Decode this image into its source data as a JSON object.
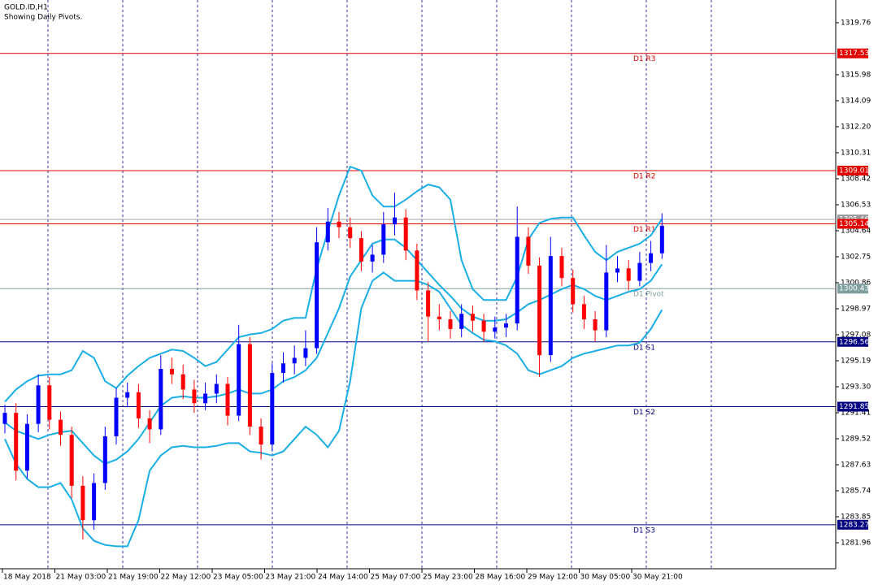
{
  "chart_data": {
    "type": "candlestick",
    "title": "GOLD.ID,H1",
    "subtitle": "Showing Daily Pivots.",
    "x_labels": [
      "18 May 2018",
      "21 May 03:00",
      "21 May 19:00",
      "22 May 12:00",
      "23 May 05:00",
      "23 May 21:00",
      "24 May 14:00",
      "25 May 07:00",
      "25 May 23:00",
      "28 May 16:00",
      "29 May 12:00",
      "30 May 05:00",
      "30 May 21:00"
    ],
    "up_color": "#0000ff",
    "down_color": "#ff0000",
    "open": [
      1290.6,
      1291.4,
      1287.2,
      1290.6,
      1293.4,
      1290.9,
      1289.8,
      1286.1,
      1283.6,
      1286.3,
      1289.7,
      1292.5,
      1292.9,
      1291.0,
      1290.2,
      1294.6,
      1294.2,
      1293.1,
      1292.1,
      1292.8,
      1293.5,
      1291.2,
      1296.4,
      1290.4,
      1289.1,
      1294.3,
      1295.0,
      1295.4,
      1296.1,
      1303.8,
      1305.3,
      1304.9,
      1304.1,
      1302.4,
      1302.9,
      1305.1,
      1305.6,
      1303.2,
      1300.3,
      1298.4,
      1298.2,
      1297.5,
      1298.6,
      1298.1,
      1297.3,
      1297.6,
      1297.9,
      1304.2,
      1302.1,
      1295.6,
      1302.8,
      1301.2,
      1299.3,
      1298.2,
      1297.4,
      1301.6,
      1301.9,
      1301.0,
      1302.3,
      1303.0
    ],
    "high": [
      1292.0,
      1292.1,
      1291.3,
      1294.2,
      1294.0,
      1291.5,
      1290.4,
      1286.8,
      1287.0,
      1290.4,
      1293.2,
      1293.6,
      1293.5,
      1291.6,
      1295.6,
      1295.4,
      1294.9,
      1293.8,
      1293.6,
      1294.2,
      1294.0,
      1297.8,
      1296.9,
      1291.0,
      1295.0,
      1295.8,
      1296.3,
      1297.4,
      1304.9,
      1306.3,
      1306.0,
      1305.6,
      1304.6,
      1303.6,
      1306.0,
      1307.4,
      1306.2,
      1303.7,
      1300.9,
      1299.3,
      1298.8,
      1299.3,
      1299.2,
      1298.6,
      1298.4,
      1298.6,
      1306.4,
      1304.9,
      1302.7,
      1304.2,
      1303.4,
      1301.8,
      1299.9,
      1298.8,
      1303.6,
      1302.8,
      1302.5,
      1303.1,
      1303.9,
      1305.9
    ],
    "low": [
      1289.9,
      1286.5,
      1286.6,
      1290.0,
      1290.2,
      1289.0,
      1285.2,
      1282.2,
      1282.9,
      1285.8,
      1289.1,
      1291.8,
      1290.3,
      1289.2,
      1289.8,
      1293.5,
      1292.4,
      1291.4,
      1291.6,
      1292.1,
      1290.5,
      1290.8,
      1289.8,
      1288.0,
      1288.6,
      1293.6,
      1294.2,
      1294.8,
      1295.7,
      1303.2,
      1304.1,
      1303.4,
      1301.7,
      1301.6,
      1302.3,
      1304.3,
      1302.5,
      1299.6,
      1296.6,
      1297.4,
      1296.8,
      1296.9,
      1297.3,
      1296.6,
      1296.8,
      1296.9,
      1297.4,
      1301.5,
      1294.0,
      1295.1,
      1300.6,
      1298.7,
      1297.5,
      1296.6,
      1296.9,
      1300.9,
      1300.3,
      1300.6,
      1301.7,
      1302.6
    ],
    "close": [
      1291.4,
      1287.2,
      1290.6,
      1293.4,
      1290.9,
      1289.8,
      1286.1,
      1283.6,
      1286.3,
      1289.7,
      1292.5,
      1292.9,
      1291.0,
      1290.2,
      1294.6,
      1294.2,
      1293.1,
      1292.1,
      1292.8,
      1293.5,
      1291.2,
      1296.4,
      1290.4,
      1289.1,
      1294.3,
      1295.0,
      1295.4,
      1296.1,
      1303.8,
      1305.3,
      1304.9,
      1304.1,
      1302.4,
      1302.9,
      1305.1,
      1305.6,
      1303.2,
      1300.3,
      1298.4,
      1298.2,
      1297.5,
      1298.6,
      1298.1,
      1297.3,
      1297.6,
      1297.9,
      1304.2,
      1302.1,
      1295.6,
      1302.8,
      1301.2,
      1299.3,
      1298.2,
      1297.4,
      1301.6,
      1301.9,
      1301.0,
      1302.3,
      1303.0,
      1305.0
    ],
    "bands": {
      "color": "#1aaee6",
      "upper": [
        1292.2,
        1293.1,
        1293.7,
        1294.1,
        1294.2,
        1294.2,
        1294.5,
        1295.9,
        1295.4,
        1293.7,
        1293.2,
        1294.1,
        1294.8,
        1295.4,
        1295.7,
        1296.0,
        1295.9,
        1295.4,
        1294.8,
        1295.1,
        1296.0,
        1296.9,
        1297.1,
        1297.2,
        1297.5,
        1298.1,
        1298.3,
        1298.3,
        1301.9,
        1304.6,
        1307.2,
        1309.3,
        1309.0,
        1307.2,
        1306.4,
        1306.4,
        1306.9,
        1307.5,
        1308.0,
        1307.8,
        1306.9,
        1302.5,
        1300.4,
        1299.6,
        1299.6,
        1299.6,
        1301.3,
        1304.0,
        1305.2,
        1305.5,
        1305.6,
        1305.6,
        1304.3,
        1303.1,
        1302.5,
        1303.1,
        1303.4,
        1303.7,
        1304.3,
        1305.5
      ],
      "middle": [
        1290.7,
        1290.1,
        1289.8,
        1289.5,
        1289.8,
        1290.0,
        1290.1,
        1289.2,
        1288.3,
        1287.7,
        1288.0,
        1288.6,
        1289.5,
        1290.7,
        1291.9,
        1292.5,
        1292.6,
        1292.5,
        1292.5,
        1292.6,
        1292.8,
        1293.1,
        1292.8,
        1292.8,
        1293.1,
        1293.7,
        1294.0,
        1294.5,
        1295.4,
        1297.2,
        1299.0,
        1301.3,
        1302.5,
        1303.7,
        1304.0,
        1304.0,
        1303.4,
        1302.5,
        1301.6,
        1300.7,
        1299.9,
        1299.0,
        1298.4,
        1298.1,
        1298.1,
        1298.2,
        1298.7,
        1299.3,
        1299.6,
        1300.0,
        1300.4,
        1300.7,
        1300.4,
        1299.9,
        1299.6,
        1299.9,
        1300.2,
        1300.4,
        1301.0,
        1302.2
      ],
      "lower": [
        1289.5,
        1287.7,
        1286.6,
        1286.0,
        1286.0,
        1286.3,
        1285.1,
        1283.0,
        1282.1,
        1281.8,
        1281.7,
        1281.7,
        1283.6,
        1287.2,
        1288.3,
        1288.9,
        1289.0,
        1288.9,
        1288.9,
        1289.0,
        1289.2,
        1289.2,
        1288.6,
        1288.5,
        1288.3,
        1288.6,
        1289.5,
        1290.4,
        1289.8,
        1288.9,
        1290.1,
        1293.7,
        1299.0,
        1301.0,
        1301.6,
        1301.0,
        1301.0,
        1301.0,
        1300.7,
        1300.2,
        1299.0,
        1297.8,
        1297.2,
        1296.7,
        1296.6,
        1296.3,
        1295.7,
        1294.5,
        1294.2,
        1294.5,
        1294.8,
        1295.4,
        1295.7,
        1295.9,
        1296.1,
        1296.3,
        1296.3,
        1296.5,
        1297.5,
        1298.9
      ]
    },
    "current_price": {
      "value": 1305.46,
      "color": "#9a9a9a"
    },
    "levels": [
      {
        "label": "D1 R3",
        "value": 1317.53,
        "color": "#e00000"
      },
      {
        "label": "D1 R2",
        "value": 1309.01,
        "color": "#e00000"
      },
      {
        "label": "D1 R1",
        "value": 1305.14,
        "color": "#e00000"
      },
      {
        "label": "D1 Pivot",
        "value": 1300.43,
        "color": "#7f9f9f"
      },
      {
        "label": "D1 S1",
        "value": 1296.56,
        "color": "#000080"
      },
      {
        "label": "D1 S2",
        "value": 1291.85,
        "color": "#000080"
      },
      {
        "label": "D1 S3",
        "value": 1283.27,
        "color": "#000080"
      }
    ],
    "ylim": [
      1280.07,
      1321.41
    ],
    "yticks": [
      1319.76,
      1315.98,
      1314.09,
      {
        "value": 1312.2,
        "label": "1312.20"
      },
      1310.31,
      1308.42,
      1306.53,
      1304.64,
      1302.75,
      1300.86,
      1298.97,
      1297.08,
      1295.19,
      {
        "value": 1293.3,
        "label": "1293.30"
      },
      1291.41,
      1289.52,
      1287.63,
      1285.74,
      1283.85,
      1281.96
    ]
  }
}
